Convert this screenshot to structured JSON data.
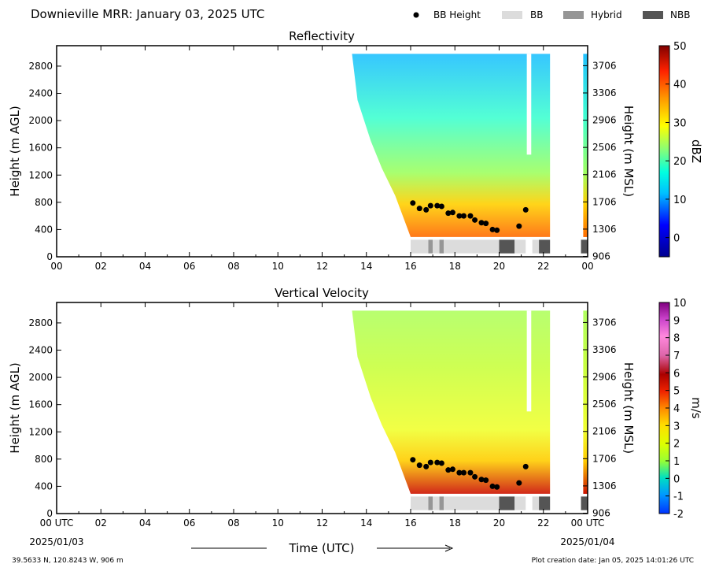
{
  "header": {
    "title": "Downieville MRR:  January 03, 2025 UTC",
    "legend": [
      {
        "label": "BB Height",
        "kind": "dot",
        "color": "#000000"
      },
      {
        "label": "BB",
        "kind": "rect",
        "color": "#dcdcdc"
      },
      {
        "label": "Hybrid",
        "kind": "rect",
        "color": "#969696"
      },
      {
        "label": "NBB",
        "kind": "rect",
        "color": "#555555"
      }
    ]
  },
  "footer": {
    "location": "39.5633 N, 120.8243 W, 906 m",
    "creation": "Plot creation date: Jan 05, 2025 14:01:26 UTC",
    "xlabel": "Time (UTC)",
    "left_time": "00 UTC",
    "left_date": "2025/01/03",
    "right_time": "00 UTC",
    "right_date": "2025/01/04"
  },
  "chart_data": [
    {
      "type": "heatmap",
      "title": "Reflectivity",
      "ylabel": "Height (m AGL)",
      "y2label": "Height (m MSL)",
      "cbar_label": "dBZ",
      "xlim": [
        0,
        24
      ],
      "ylim": [
        0,
        3100
      ],
      "x_ticks": [
        "00",
        "02",
        "04",
        "06",
        "08",
        "10",
        "12",
        "14",
        "16",
        "18",
        "20",
        "22",
        "00"
      ],
      "y_ticks": [
        0,
        400,
        800,
        1200,
        1600,
        2000,
        2400,
        2800
      ],
      "y2_ticks": [
        "906",
        "1306",
        "1706",
        "2106",
        "2506",
        "2906",
        "3306",
        "3706"
      ],
      "cbar_range": [
        -5,
        50
      ],
      "cbar_ticks": [
        0,
        10,
        20,
        30,
        40,
        50
      ],
      "bb_height": [
        [
          16.1,
          790
        ],
        [
          16.4,
          710
        ],
        [
          16.7,
          690
        ],
        [
          16.9,
          750
        ],
        [
          17.2,
          750
        ],
        [
          17.4,
          740
        ],
        [
          17.7,
          640
        ],
        [
          17.9,
          650
        ],
        [
          18.2,
          600
        ],
        [
          18.4,
          600
        ],
        [
          18.7,
          600
        ],
        [
          18.9,
          540
        ],
        [
          19.2,
          500
        ],
        [
          19.4,
          490
        ],
        [
          19.7,
          400
        ],
        [
          19.9,
          390
        ],
        [
          20.9,
          450
        ],
        [
          21.2,
          690
        ]
      ],
      "bb_bar": [
        [
          16.0,
          16.8,
          "BB"
        ],
        [
          16.8,
          17.0,
          "Hybrid"
        ],
        [
          17.0,
          17.3,
          "BB"
        ],
        [
          17.3,
          17.5,
          "Hybrid"
        ],
        [
          17.5,
          20.0,
          "BB"
        ],
        [
          20.0,
          20.7,
          "NBB"
        ],
        [
          20.7,
          21.2,
          "BB"
        ],
        [
          21.5,
          21.8,
          "BB"
        ],
        [
          21.8,
          22.3,
          "NBB"
        ],
        [
          23.7,
          24.0,
          "NBB"
        ]
      ]
    },
    {
      "type": "heatmap",
      "title": "Vertical Velocity",
      "ylabel": "Height (m AGL)",
      "y2label": "Height (m MSL)",
      "cbar_label": "m/s",
      "xlim": [
        0,
        24
      ],
      "ylim": [
        0,
        3100
      ],
      "x_ticks": [
        "00 UTC",
        "02",
        "04",
        "06",
        "08",
        "10",
        "12",
        "14",
        "16",
        "18",
        "20",
        "22",
        "00 UTC"
      ],
      "y_ticks": [
        0,
        400,
        800,
        1200,
        1600,
        2000,
        2400,
        2800
      ],
      "y2_ticks": [
        "906",
        "1306",
        "1706",
        "2106",
        "2506",
        "2906",
        "3306",
        "3706"
      ],
      "cbar_range": [
        -2,
        10
      ],
      "cbar_ticks": [
        -2,
        -1,
        0,
        1,
        2,
        3,
        4,
        5,
        6,
        7,
        8,
        9,
        10
      ],
      "bb_height": [
        [
          16.1,
          790
        ],
        [
          16.4,
          710
        ],
        [
          16.7,
          690
        ],
        [
          16.9,
          750
        ],
        [
          17.2,
          750
        ],
        [
          17.4,
          740
        ],
        [
          17.7,
          640
        ],
        [
          17.9,
          650
        ],
        [
          18.2,
          600
        ],
        [
          18.4,
          600
        ],
        [
          18.7,
          600
        ],
        [
          18.9,
          540
        ],
        [
          19.2,
          500
        ],
        [
          19.4,
          490
        ],
        [
          19.7,
          400
        ],
        [
          19.9,
          390
        ],
        [
          20.9,
          450
        ],
        [
          21.2,
          690
        ]
      ],
      "bb_bar": [
        [
          16.0,
          16.8,
          "BB"
        ],
        [
          16.8,
          17.0,
          "Hybrid"
        ],
        [
          17.0,
          17.3,
          "BB"
        ],
        [
          17.3,
          17.5,
          "Hybrid"
        ],
        [
          17.5,
          20.0,
          "BB"
        ],
        [
          20.0,
          20.7,
          "NBB"
        ],
        [
          20.7,
          21.2,
          "BB"
        ],
        [
          21.5,
          21.8,
          "BB"
        ],
        [
          21.8,
          22.3,
          "NBB"
        ],
        [
          23.7,
          24.0,
          "NBB"
        ]
      ]
    }
  ]
}
